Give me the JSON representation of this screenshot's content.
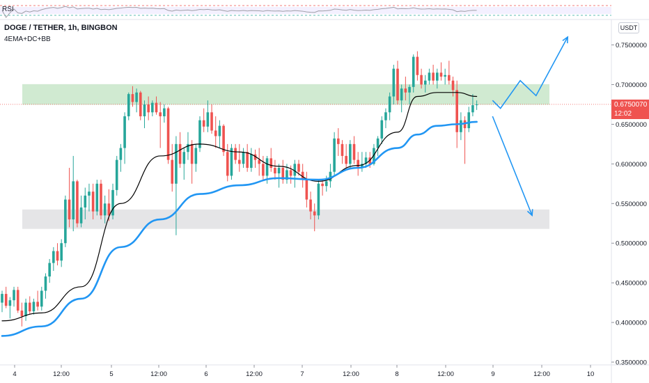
{
  "header": {
    "symbol": "DOGE / TETHER, 1h, BINGBON",
    "indicators": "4EMA+DC+BB",
    "currency_button": "USDT",
    "rsi_label": "RSI"
  },
  "price_tag": {
    "price": "0.6750070",
    "countdown": "12:02"
  },
  "colors": {
    "up": "#26a69a",
    "down": "#ef5350",
    "ema_fast": "#000000",
    "ema_slow": "#2196f3",
    "resistance_zone": "#c8e6c9",
    "support_zone": "#e0e0e3",
    "projection": "#2196f3"
  },
  "chart_data": {
    "type": "candlestick",
    "x_ticks": [
      "4",
      "12:00",
      "5",
      "12:00",
      "6",
      "12:00",
      "7",
      "12:00",
      "8",
      "12:00",
      "9",
      "12:00",
      "10"
    ],
    "y_ticks": [
      "0.7500000",
      "0.7000000",
      "0.6500000",
      "0.6000000",
      "0.5500000",
      "0.5000000",
      "0.4500000",
      "0.4000000",
      "0.3500000"
    ],
    "ylim": [
      0.34,
      0.79
    ],
    "last_price": 0.675007,
    "zones": [
      {
        "name": "resistance",
        "from": 0.6746,
        "to": 0.7005
      },
      {
        "name": "support",
        "from": 0.518,
        "to": 0.5425
      }
    ],
    "candles": [
      [
        0.425,
        0.44,
        0.413,
        0.436
      ],
      [
        0.436,
        0.445,
        0.418,
        0.421
      ],
      [
        0.421,
        0.432,
        0.405,
        0.428
      ],
      [
        0.428,
        0.445,
        0.42,
        0.441
      ],
      [
        0.441,
        0.445,
        0.412,
        0.415
      ],
      [
        0.415,
        0.425,
        0.395,
        0.408
      ],
      [
        0.408,
        0.43,
        0.402,
        0.425
      ],
      [
        0.425,
        0.433,
        0.41,
        0.414
      ],
      [
        0.414,
        0.43,
        0.41,
        0.426
      ],
      [
        0.426,
        0.44,
        0.415,
        0.42
      ],
      [
        0.42,
        0.445,
        0.415,
        0.44
      ],
      [
        0.44,
        0.462,
        0.43,
        0.458
      ],
      [
        0.458,
        0.48,
        0.45,
        0.475
      ],
      [
        0.475,
        0.495,
        0.465,
        0.49
      ],
      [
        0.49,
        0.5,
        0.472,
        0.478
      ],
      [
        0.478,
        0.505,
        0.47,
        0.5
      ],
      [
        0.5,
        0.56,
        0.495,
        0.555
      ],
      [
        0.555,
        0.595,
        0.52,
        0.53
      ],
      [
        0.53,
        0.61,
        0.515,
        0.578
      ],
      [
        0.578,
        0.58,
        0.52,
        0.525
      ],
      [
        0.525,
        0.56,
        0.52,
        0.545
      ],
      [
        0.545,
        0.57,
        0.53,
        0.56
      ],
      [
        0.56,
        0.575,
        0.54,
        0.565
      ],
      [
        0.565,
        0.575,
        0.53,
        0.54
      ],
      [
        0.54,
        0.58,
        0.535,
        0.575
      ],
      [
        0.575,
        0.58,
        0.53,
        0.535
      ],
      [
        0.535,
        0.56,
        0.525,
        0.55
      ],
      [
        0.55,
        0.568,
        0.528,
        0.535
      ],
      [
        0.535,
        0.575,
        0.53,
        0.567
      ],
      [
        0.567,
        0.61,
        0.56,
        0.605
      ],
      [
        0.605,
        0.625,
        0.59,
        0.62
      ],
      [
        0.62,
        0.665,
        0.6,
        0.66
      ],
      [
        0.66,
        0.69,
        0.655,
        0.688
      ],
      [
        0.688,
        0.698,
        0.672,
        0.678
      ],
      [
        0.678,
        0.695,
        0.665,
        0.69
      ],
      [
        0.69,
        0.692,
        0.655,
        0.66
      ],
      [
        0.66,
        0.68,
        0.645,
        0.675
      ],
      [
        0.675,
        0.685,
        0.655,
        0.665
      ],
      [
        0.665,
        0.68,
        0.66,
        0.677
      ],
      [
        0.677,
        0.685,
        0.662,
        0.665
      ],
      [
        0.665,
        0.678,
        0.62,
        0.66
      ],
      [
        0.66,
        0.675,
        0.652,
        0.67
      ],
      [
        0.67,
        0.672,
        0.6,
        0.605
      ],
      [
        0.605,
        0.625,
        0.565,
        0.575
      ],
      [
        0.575,
        0.635,
        0.51,
        0.625
      ],
      [
        0.625,
        0.64,
        0.595,
        0.6
      ],
      [
        0.6,
        0.62,
        0.58,
        0.615
      ],
      [
        0.615,
        0.64,
        0.605,
        0.625
      ],
      [
        0.625,
        0.63,
        0.575,
        0.6
      ],
      [
        0.6,
        0.625,
        0.59,
        0.62
      ],
      [
        0.62,
        0.66,
        0.615,
        0.655
      ],
      [
        0.655,
        0.67,
        0.64,
        0.647
      ],
      [
        0.647,
        0.68,
        0.64,
        0.665
      ],
      [
        0.665,
        0.675,
        0.638,
        0.642
      ],
      [
        0.642,
        0.66,
        0.62,
        0.635
      ],
      [
        0.635,
        0.655,
        0.62,
        0.648
      ],
      [
        0.648,
        0.65,
        0.61,
        0.615
      ],
      [
        0.615,
        0.625,
        0.578,
        0.585
      ],
      [
        0.585,
        0.625,
        0.58,
        0.62
      ],
      [
        0.62,
        0.625,
        0.6,
        0.605
      ],
      [
        0.605,
        0.625,
        0.59,
        0.6
      ],
      [
        0.6,
        0.62,
        0.595,
        0.615
      ],
      [
        0.615,
        0.625,
        0.59,
        0.595
      ],
      [
        0.595,
        0.62,
        0.59,
        0.612
      ],
      [
        0.612,
        0.618,
        0.595,
        0.605
      ],
      [
        0.605,
        0.62,
        0.585,
        0.6
      ],
      [
        0.6,
        0.61,
        0.58,
        0.585
      ],
      [
        0.585,
        0.61,
        0.575,
        0.607
      ],
      [
        0.607,
        0.62,
        0.59,
        0.595
      ],
      [
        0.595,
        0.605,
        0.58,
        0.588
      ],
      [
        0.588,
        0.6,
        0.57,
        0.595
      ],
      [
        0.595,
        0.605,
        0.575,
        0.58
      ],
      [
        0.58,
        0.6,
        0.575,
        0.592
      ],
      [
        0.592,
        0.598,
        0.575,
        0.585
      ],
      [
        0.585,
        0.605,
        0.57,
        0.6
      ],
      [
        0.6,
        0.605,
        0.585,
        0.59
      ],
      [
        0.59,
        0.6,
        0.57,
        0.58
      ],
      [
        0.58,
        0.59,
        0.545,
        0.555
      ],
      [
        0.555,
        0.565,
        0.53,
        0.54
      ],
      [
        0.54,
        0.55,
        0.515,
        0.535
      ],
      [
        0.535,
        0.58,
        0.53,
        0.575
      ],
      [
        0.575,
        0.58,
        0.56,
        0.572
      ],
      [
        0.572,
        0.585,
        0.565,
        0.578
      ],
      [
        0.578,
        0.6,
        0.57,
        0.59
      ],
      [
        0.59,
        0.64,
        0.585,
        0.632
      ],
      [
        0.632,
        0.645,
        0.61,
        0.625
      ],
      [
        0.625,
        0.63,
        0.6,
        0.61
      ],
      [
        0.61,
        0.625,
        0.595,
        0.6
      ],
      [
        0.6,
        0.63,
        0.595,
        0.625
      ],
      [
        0.625,
        0.635,
        0.6,
        0.605
      ],
      [
        0.605,
        0.615,
        0.585,
        0.595
      ],
      [
        0.595,
        0.615,
        0.59,
        0.6
      ],
      [
        0.6,
        0.615,
        0.595,
        0.608
      ],
      [
        0.608,
        0.615,
        0.595,
        0.6
      ],
      [
        0.6,
        0.625,
        0.598,
        0.62
      ],
      [
        0.62,
        0.635,
        0.61,
        0.632
      ],
      [
        0.632,
        0.66,
        0.625,
        0.655
      ],
      [
        0.655,
        0.67,
        0.645,
        0.665
      ],
      [
        0.665,
        0.69,
        0.655,
        0.685
      ],
      [
        0.685,
        0.725,
        0.675,
        0.72
      ],
      [
        0.72,
        0.73,
        0.675,
        0.68
      ],
      [
        0.68,
        0.7,
        0.665,
        0.695
      ],
      [
        0.695,
        0.71,
        0.68,
        0.69
      ],
      [
        0.69,
        0.7,
        0.675,
        0.697
      ],
      [
        0.697,
        0.738,
        0.69,
        0.735
      ],
      [
        0.735,
        0.742,
        0.705,
        0.712
      ],
      [
        0.712,
        0.72,
        0.695,
        0.7
      ],
      [
        0.7,
        0.712,
        0.69,
        0.705
      ],
      [
        0.705,
        0.72,
        0.7,
        0.715
      ],
      [
        0.715,
        0.725,
        0.7,
        0.705
      ],
      [
        0.705,
        0.72,
        0.695,
        0.715
      ],
      [
        0.715,
        0.728,
        0.705,
        0.71
      ],
      [
        0.71,
        0.72,
        0.7,
        0.712
      ],
      [
        0.712,
        0.73,
        0.7,
        0.705
      ],
      [
        0.705,
        0.71,
        0.685,
        0.693
      ],
      [
        0.693,
        0.705,
        0.62,
        0.64
      ],
      [
        0.64,
        0.665,
        0.63,
        0.655
      ],
      [
        0.655,
        0.66,
        0.6,
        0.645
      ],
      [
        0.645,
        0.672,
        0.64,
        0.665
      ],
      [
        0.665,
        0.688,
        0.66,
        0.674
      ],
      [
        0.674,
        0.68,
        0.668,
        0.675
      ]
    ],
    "series": [
      {
        "type": "line",
        "points": [
          [
            0,
            0.402
          ],
          [
            10,
            0.412
          ],
          [
            20,
            0.445
          ],
          [
            30,
            0.55
          ],
          [
            40,
            0.61
          ],
          [
            50,
            0.625
          ],
          [
            60,
            0.615
          ],
          [
            70,
            0.597
          ],
          [
            80,
            0.578
          ],
          [
            90,
            0.598
          ],
          [
            100,
            0.64
          ],
          [
            105,
            0.685
          ],
          [
            110,
            0.69
          ],
          [
            115,
            0.69
          ],
          [
            120,
            0.685
          ]
        ]
      },
      {
        "type": "line",
        "points": [
          [
            0,
            0.383
          ],
          [
            10,
            0.395
          ],
          [
            20,
            0.43
          ],
          [
            30,
            0.495
          ],
          [
            40,
            0.53
          ],
          [
            50,
            0.562
          ],
          [
            60,
            0.573
          ],
          [
            70,
            0.582
          ],
          [
            80,
            0.58
          ],
          [
            90,
            0.595
          ],
          [
            100,
            0.62
          ],
          [
            105,
            0.637
          ],
          [
            110,
            0.648
          ],
          [
            115,
            0.65
          ],
          [
            120,
            0.653
          ]
        ]
      }
    ],
    "projections": [
      [
        [
          124,
          0.68
        ],
        [
          126,
          0.67
        ],
        [
          131,
          0.705
        ],
        [
          135,
          0.686
        ],
        [
          143,
          0.76
        ]
      ],
      [
        [
          124,
          0.66
        ],
        [
          134,
          0.535
        ]
      ]
    ]
  }
}
